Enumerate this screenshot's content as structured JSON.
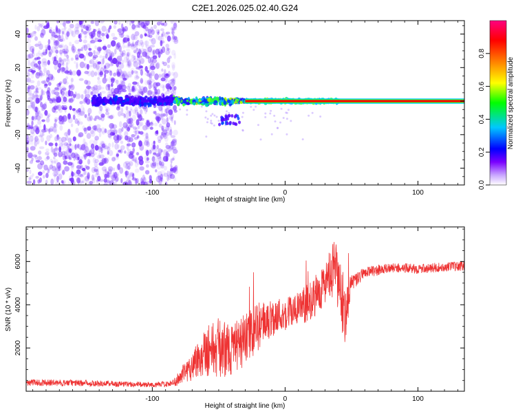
{
  "chart_data": [
    {
      "type": "heatmap",
      "title": "C2E1.2026.025.02.40.G24",
      "xlabel": "Height of straight line (km)",
      "ylabel": "Frequency (Hz)",
      "xlim": [
        -195,
        135
      ],
      "ylim": [
        -50,
        48
      ],
      "xticks": [
        -100,
        0,
        100
      ],
      "xtick_labels": [
        "-100",
        "0",
        "100"
      ],
      "yticks": [
        -40,
        -20,
        0,
        20,
        40
      ],
      "ytick_labels": [
        "-40",
        "-20",
        "0",
        "20",
        "40"
      ],
      "colorbar": {
        "label": "Normalized spectral amplitude",
        "range": [
          0,
          1
        ],
        "ticks": [
          0.0,
          0.2,
          0.4,
          0.6,
          0.8
        ],
        "tick_labels": [
          "0.0",
          "0.2",
          "0.4",
          "0.6",
          "0.8"
        ],
        "colors": [
          "#ffffff",
          "#7a00ff",
          "#0000ff",
          "#00c8ff",
          "#00ff00",
          "#ffff00",
          "#ff8000",
          "#ff0000",
          "#ff0080"
        ]
      },
      "features": {
        "noise_region_x": [
          -195,
          -82
        ],
        "noise_color": "#7a33ff",
        "carrier_frequency_hz": 0,
        "carrier_start_km": -30,
        "carrier_color": "#ff0000"
      }
    },
    {
      "type": "line",
      "title": "",
      "xlabel": "Height of straight line (km)",
      "ylabel": "SNR (10 * v/v)",
      "xlim": [
        -195,
        135
      ],
      "ylim": [
        0,
        7600
      ],
      "xticks": [
        -100,
        0,
        100
      ],
      "xtick_labels": [
        "-100",
        "0",
        "100"
      ],
      "yticks": [
        2000,
        4000,
        6000
      ],
      "ytick_labels": [
        "2000",
        "4000",
        "6000"
      ],
      "line_color": "#ee3333",
      "envelope": {
        "x": [
          -195,
          -150,
          -100,
          -85,
          -78,
          -70,
          -60,
          -50,
          -40,
          -30,
          -20,
          -10,
          0,
          10,
          20,
          30,
          38,
          45,
          50,
          60,
          70,
          80,
          90,
          100,
          110,
          120,
          135
        ],
        "y": [
          400,
          380,
          300,
          350,
          700,
          1200,
          1900,
          2000,
          1900,
          2400,
          3000,
          3400,
          3600,
          3800,
          4200,
          5000,
          5600,
          3600,
          5000,
          5500,
          5600,
          5700,
          5700,
          5650,
          5700,
          5750,
          5800
        ],
        "spread": [
          150,
          150,
          120,
          150,
          400,
          700,
          1200,
          1400,
          1200,
          1200,
          1100,
          900,
          800,
          800,
          900,
          1000,
          1500,
          1500,
          400,
          250,
          250,
          220,
          220,
          220,
          220,
          220,
          220
        ]
      }
    }
  ]
}
